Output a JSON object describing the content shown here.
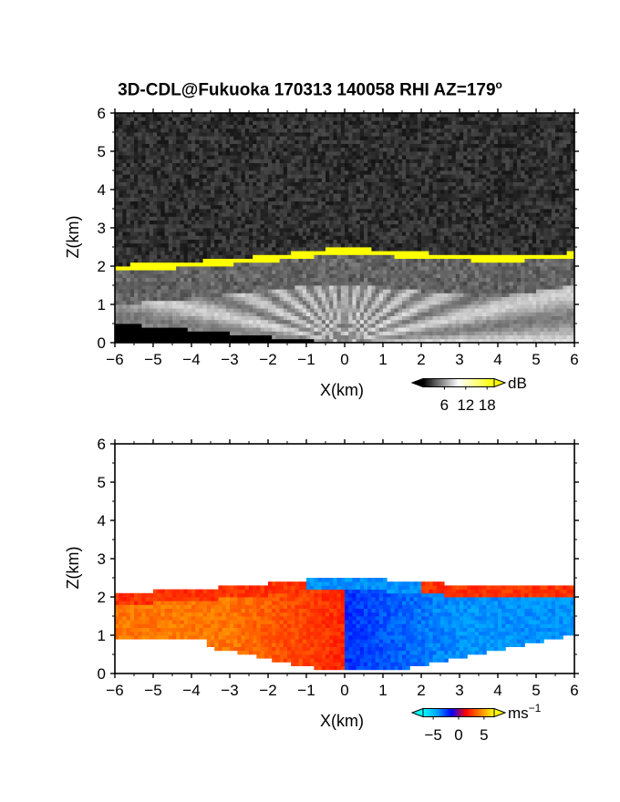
{
  "figure": {
    "title_main": "3D-CDL@Fukuoka 170313 140058 RHI AZ=179",
    "title_sup": "o"
  },
  "chart_data": [
    {
      "type": "heatmap",
      "variable": "signal",
      "xlabel": "X(km)",
      "ylabel": "Z(km)",
      "xlim": [
        -6,
        6
      ],
      "ylim": [
        0,
        6
      ],
      "xticks": [
        "−6",
        "−5",
        "−4",
        "−3",
        "−2",
        "−1",
        "0",
        "1",
        "2",
        "3",
        "4",
        "5",
        "6"
      ],
      "yticks": [
        "0",
        "1",
        "2",
        "3",
        "4",
        "5",
        "6"
      ],
      "colorbar": {
        "unit": "dB",
        "ticks": [
          "6",
          "12",
          "18"
        ],
        "tick_values": [
          6,
          12,
          18
        ],
        "range": [
          0,
          20
        ],
        "colors": [
          "#000000",
          "#ffffff",
          "#ffff00"
        ]
      },
      "features": {
        "background": "noise",
        "cloud_base_km": [
          [
            -6,
            1.95
          ],
          [
            -4,
            2.05
          ],
          [
            -2,
            2.2
          ],
          [
            0,
            2.42
          ],
          [
            2,
            2.28
          ],
          [
            4,
            2.2
          ],
          [
            6,
            2.28
          ]
        ],
        "boundary_layer_top_km": [
          [
            -6,
            1.0
          ],
          [
            -4,
            1.15
          ],
          [
            -2,
            1.4
          ],
          [
            0,
            1.55
          ],
          [
            2,
            1.35
          ],
          [
            4,
            1.2
          ],
          [
            6,
            1.5
          ]
        ],
        "highlight_color": "#ffff00"
      }
    },
    {
      "type": "heatmap",
      "variable": "radial velocity",
      "xlabel": "X(km)",
      "ylabel": "Z(km)",
      "xlim": [
        -6,
        6
      ],
      "ylim": [
        0,
        6
      ],
      "xticks": [
        "−6",
        "−5",
        "−4",
        "−3",
        "−2",
        "−1",
        "0",
        "1",
        "2",
        "3",
        "4",
        "5",
        "6"
      ],
      "yticks": [
        "0",
        "1",
        "2",
        "3",
        "4",
        "5",
        "6"
      ],
      "colorbar": {
        "unit": "ms",
        "unit_sup": "−1",
        "ticks": [
          "−5",
          "0",
          "5"
        ],
        "tick_values": [
          -5,
          0,
          5
        ],
        "range": [
          -7,
          7
        ],
        "colors": [
          "#00ffff",
          "#00a0ff",
          "#0000ff",
          "#ff0000",
          "#ff8000",
          "#ffff00"
        ]
      },
      "features": {
        "cloud_base_km": [
          [
            -6,
            2.05
          ],
          [
            -4,
            2.15
          ],
          [
            -2,
            2.3
          ],
          [
            0,
            2.5
          ],
          [
            2,
            2.32
          ],
          [
            4,
            2.25
          ],
          [
            6,
            2.3
          ]
        ],
        "lower_edge_km": [
          [
            -6,
            0.95
          ],
          [
            -3,
            0.6
          ],
          [
            -1.2,
            0.2
          ],
          [
            0,
            0.05
          ],
          [
            1.5,
            0.1
          ],
          [
            3,
            0.4
          ],
          [
            6,
            1.0
          ]
        ],
        "negative_side_velocity_ms": 4,
        "positive_side_velocity_ms": -4
      }
    }
  ]
}
